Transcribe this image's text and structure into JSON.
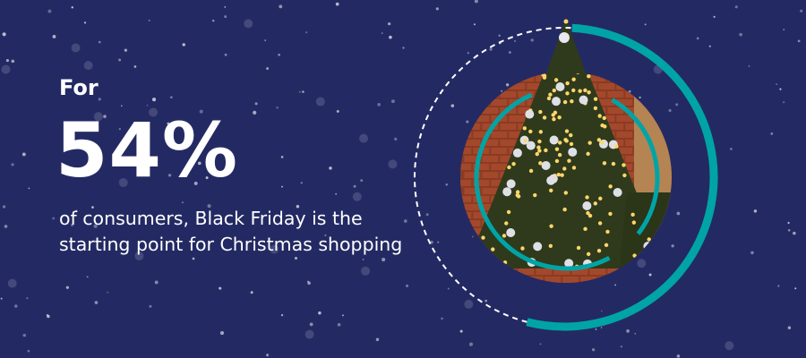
{
  "headline": {
    "prefix": "For",
    "percent": "54%",
    "description": "of consumers, Black Friday is the starting point for Christmas shopping"
  },
  "graphic": {
    "ring_fill_fraction": 0.54,
    "image": "christmas-tree-photo"
  },
  "colors": {
    "background": "#232a63",
    "accent": "#00a4a6",
    "text": "#ffffff"
  }
}
